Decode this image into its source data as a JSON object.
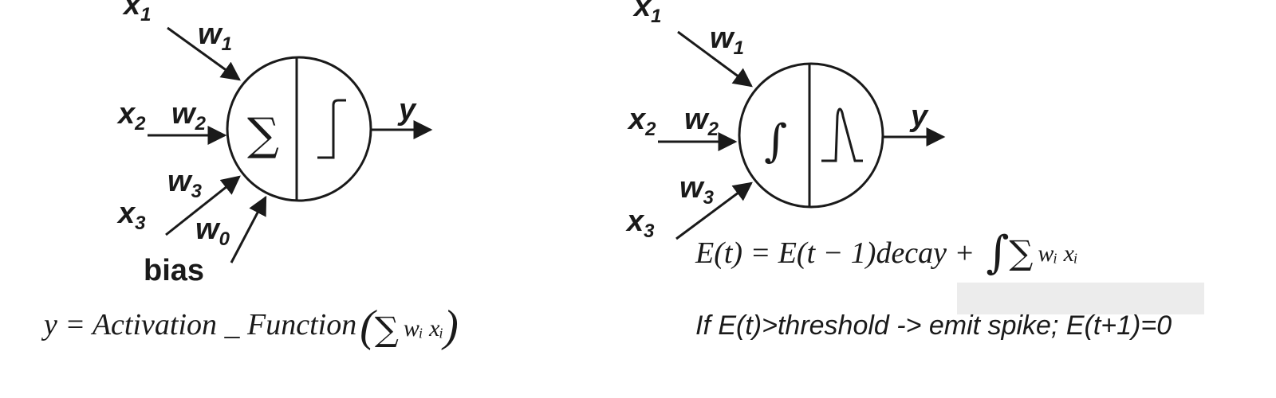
{
  "left_neuron": {
    "inputs": [
      {
        "x": "x",
        "x_sub": "1",
        "w": "w",
        "w_sub": "1"
      },
      {
        "x": "x",
        "x_sub": "2",
        "w": "w",
        "w_sub": "2"
      },
      {
        "x": "x",
        "x_sub": "3",
        "w": "w",
        "w_sub": "3"
      }
    ],
    "bias_weight": "w",
    "bias_weight_sub": "0",
    "bias_label": "bias",
    "sum_symbol": "∑",
    "output": "y",
    "equation_prefix": "y = Activation _ Function",
    "equation_sum": "∑",
    "equation_term": "wᵢ xᵢ"
  },
  "right_neuron": {
    "inputs": [
      {
        "x": "x",
        "x_sub": "1",
        "w": "w",
        "w_sub": "1"
      },
      {
        "x": "x",
        "x_sub": "2",
        "w": "w",
        "w_sub": "2"
      },
      {
        "x": "x",
        "x_sub": "3",
        "w": "w",
        "w_sub": "3"
      }
    ],
    "integral_symbol": "∫",
    "output": "y",
    "equation_energy_prefix": "E(t) = E(t − 1)decay +",
    "equation_energy_integral": "∫",
    "equation_energy_sum": "∑",
    "equation_energy_term": "wᵢ xᵢ",
    "equation_spike": "If E(t)>threshold -> emit spike; E(t+1)=0"
  }
}
